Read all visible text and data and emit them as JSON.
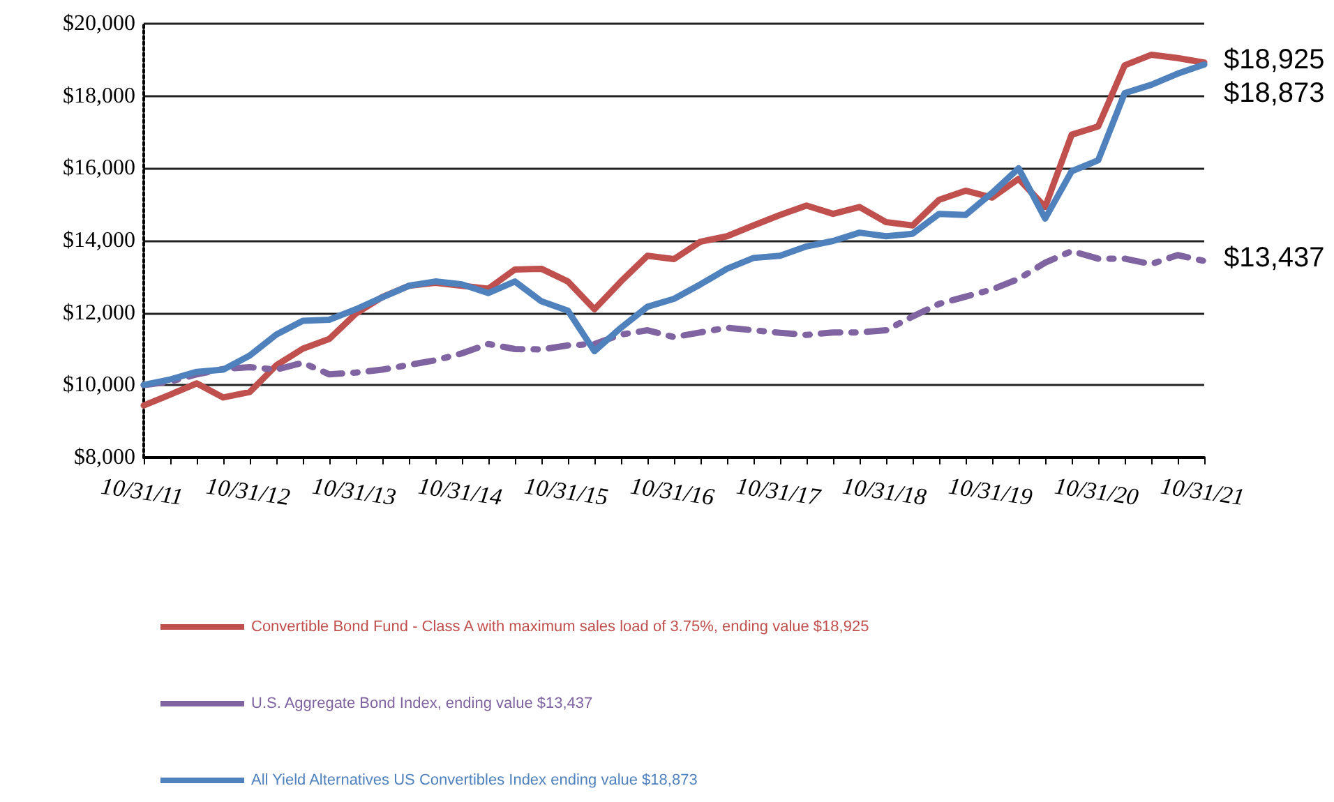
{
  "chart_data": {
    "type": "line",
    "categories": [
      "10/31/11",
      null,
      null,
      null,
      "10/31/12",
      null,
      null,
      null,
      "10/31/13",
      null,
      null,
      null,
      "10/31/14",
      null,
      null,
      null,
      "10/31/15",
      null,
      null,
      null,
      "10/31/16",
      null,
      null,
      null,
      "10/31/17",
      null,
      null,
      null,
      "10/31/18",
      null,
      null,
      null,
      "10/31/19",
      null,
      null,
      null,
      "10/31/20",
      null,
      null,
      null,
      "10/31/21"
    ],
    "series": [
      {
        "name": "Convertible Bond Fund - Class A with maximum sales load of 3.75%, ending value $18,925",
        "color": "#c0504d",
        "line_style": "solid",
        "values": [
          9440,
          9740,
          10050,
          9660,
          9810,
          10550,
          11010,
          11280,
          11980,
          12440,
          12750,
          12830,
          12750,
          12670,
          13200,
          13220,
          12870,
          12100,
          12870,
          13580,
          13490,
          13970,
          14120,
          14420,
          14710,
          14970,
          14740,
          14930,
          14510,
          14420,
          15130,
          15380,
          15190,
          15710,
          14930,
          16930,
          17160,
          18850,
          19140,
          19050,
          18925
        ]
      },
      {
        "name": "U.S. Aggregate Bond Index, ending value $13,437",
        "color": "#8064a2",
        "line_style": "dashed",
        "values": [
          10000,
          10100,
          10300,
          10450,
          10500,
          10430,
          10620,
          10300,
          10350,
          10430,
          10560,
          10690,
          10880,
          11140,
          11000,
          10990,
          11100,
          11140,
          11400,
          11520,
          11330,
          11460,
          11590,
          11520,
          11450,
          11390,
          11460,
          11460,
          11520,
          11900,
          12250,
          12450,
          12650,
          12940,
          13390,
          13710,
          13500,
          13500,
          13350,
          13600,
          13437
        ]
      },
      {
        "name": "All Yield Alternatives US Convertibles Index ending value $18,873",
        "color": "#4f81bd",
        "line_style": "solid",
        "values": [
          10010,
          10160,
          10370,
          10430,
          10820,
          11400,
          11780,
          11810,
          12100,
          12430,
          12750,
          12870,
          12790,
          12550,
          12870,
          12320,
          12060,
          10940,
          11590,
          12170,
          12390,
          12790,
          13220,
          13520,
          13580,
          13840,
          13990,
          14220,
          14120,
          14190,
          14740,
          14710,
          15320,
          16000,
          14610,
          15920,
          16220,
          18080,
          18310,
          18620,
          18873
        ]
      }
    ],
    "ylim": [
      8000,
      20000
    ],
    "yticks": [
      {
        "value": 8000,
        "label": "$8,000"
      },
      {
        "value": 10000,
        "label": "$10,000"
      },
      {
        "value": 12000,
        "label": "$12,000"
      },
      {
        "value": 14000,
        "label": "$14,000"
      },
      {
        "value": 16000,
        "label": "$16,000"
      },
      {
        "value": 18000,
        "label": "$18,000"
      },
      {
        "value": 20000,
        "label": "$20,000"
      }
    ],
    "annotations": [
      {
        "text": "$18,925",
        "x": "10/31/21",
        "y": 18925
      },
      {
        "text": "$18,873",
        "x": "10/31/21",
        "y": 18873
      },
      {
        "text": "$13,437",
        "x": "10/31/21",
        "y": 13437
      }
    ],
    "grid": "y",
    "legend": "bottom",
    "marker": "none"
  }
}
